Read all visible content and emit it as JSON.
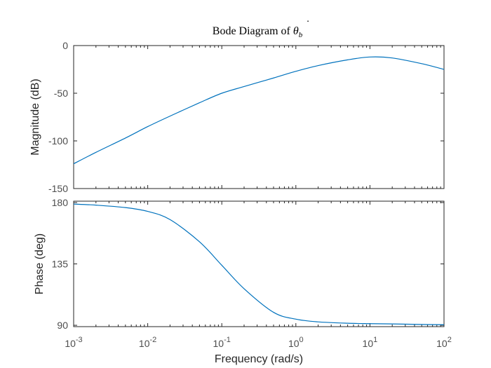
{
  "chart_data": {
    "type": "line",
    "title_main": "Bode Diagram of ",
    "title_symbol": "θ",
    "title_dot": "˙",
    "title_subscript": "b",
    "xlabel": "Frequency  (rad/s)",
    "xscale": "log",
    "xlim": [
      0.001,
      100
    ],
    "xtick_labels": [
      {
        "base": "10",
        "exp": "-3"
      },
      {
        "base": "10",
        "exp": "-2"
      },
      {
        "base": "10",
        "exp": "-1"
      },
      {
        "base": "10",
        "exp": "0"
      },
      {
        "base": "10",
        "exp": "1"
      },
      {
        "base": "10",
        "exp": "2"
      }
    ],
    "line_color": "#0072BD",
    "grid": false,
    "panels": [
      {
        "name": "magnitude",
        "ylabel": "Magnitude (dB)",
        "ylim": [
          -150,
          0
        ],
        "ytick_values": [
          -150,
          -100,
          -50,
          0
        ],
        "yticks": [
          "-150",
          "-100",
          "-50",
          "0"
        ],
        "x": [
          0.001,
          0.002,
          0.005,
          0.01,
          0.02,
          0.05,
          0.1,
          0.2,
          0.5,
          1,
          2,
          5,
          10,
          20,
          50,
          100
        ],
        "y": [
          -124,
          -112,
          -97,
          -85,
          -74,
          -60,
          -50,
          -43,
          -34,
          -27,
          -21,
          -15,
          -12,
          -13,
          -19,
          -25
        ]
      },
      {
        "name": "phase",
        "ylabel": "Phase (deg)",
        "ylim": [
          89,
          181
        ],
        "ytick_values": [
          90,
          135,
          180
        ],
        "yticks": [
          "90",
          "135",
          "180"
        ],
        "x": [
          0.001,
          0.002,
          0.005,
          0.01,
          0.02,
          0.05,
          0.1,
          0.2,
          0.5,
          1,
          2,
          5,
          10,
          20,
          50,
          100
        ],
        "y": [
          178.9,
          178.1,
          176.3,
          173.5,
          167.5,
          151.2,
          134.0,
          116.8,
          99.5,
          94.5,
          92.5,
          91.5,
          91.2,
          91.0,
          90.6,
          90.4
        ]
      }
    ]
  }
}
